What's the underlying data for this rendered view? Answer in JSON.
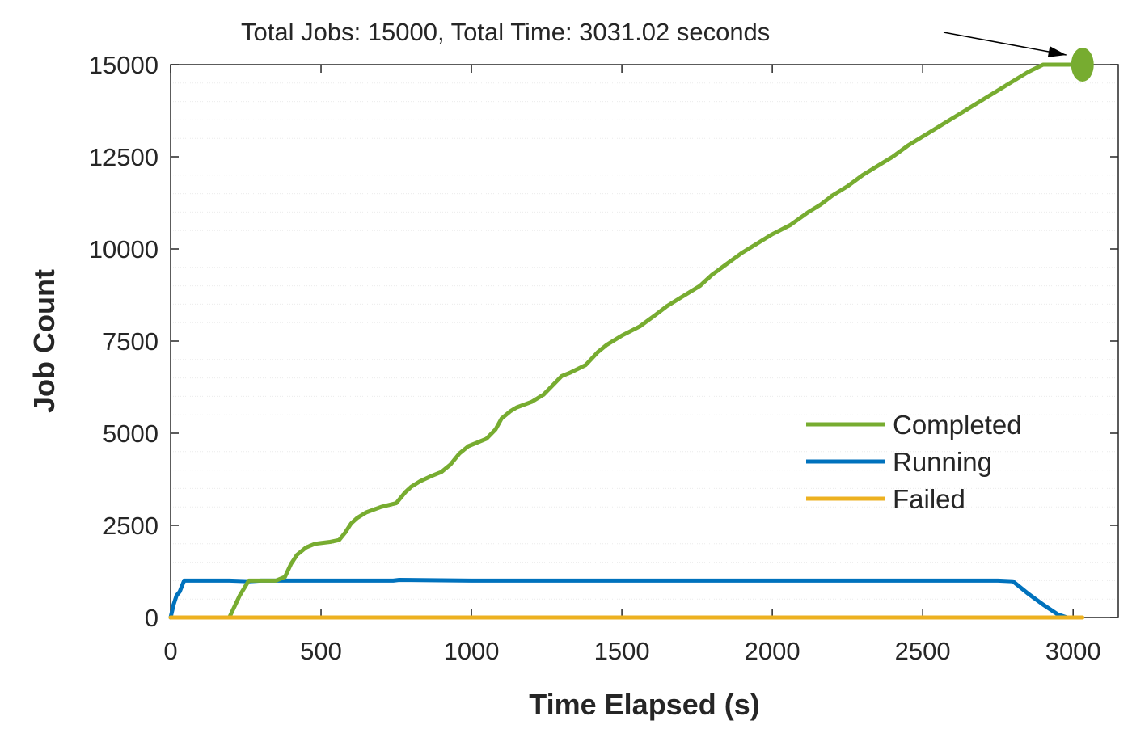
{
  "chart_data": {
    "type": "line",
    "xlabel": "Time Elapsed (s)",
    "ylabel": "Job Count",
    "xlim": [
      0,
      3150
    ],
    "ylim": [
      0,
      15000
    ],
    "xticks": [
      0,
      500,
      1000,
      1500,
      2000,
      2500,
      3000
    ],
    "yticks": [
      0,
      2500,
      5000,
      7500,
      10000,
      12500,
      15000
    ],
    "grid": "minor y-grid on",
    "legend_position": "right-center",
    "series": [
      {
        "name": "Completed",
        "color": "#77AC30",
        "x": [
          0,
          195,
          230,
          260,
          300,
          350,
          380,
          400,
          420,
          450,
          480,
          500,
          530,
          560,
          580,
          600,
          620,
          650,
          700,
          750,
          780,
          800,
          830,
          870,
          900,
          930,
          960,
          990,
          1020,
          1050,
          1080,
          1100,
          1130,
          1150,
          1200,
          1240,
          1270,
          1300,
          1330,
          1380,
          1420,
          1450,
          1500,
          1560,
          1610,
          1650,
          1700,
          1760,
          1800,
          1850,
          1900,
          1950,
          2000,
          2060,
          2120,
          2160,
          2200,
          2250,
          2300,
          2350,
          2400,
          2450,
          2500,
          2550,
          2600,
          2650,
          2700,
          2750,
          2800,
          2850,
          2900,
          2950,
          3000,
          3031
        ],
        "y": [
          0,
          0,
          600,
          1000,
          1000,
          1000,
          1100,
          1450,
          1700,
          1900,
          2000,
          2020,
          2050,
          2100,
          2300,
          2550,
          2700,
          2850,
          3000,
          3100,
          3400,
          3550,
          3700,
          3850,
          3950,
          4150,
          4450,
          4650,
          4750,
          4850,
          5100,
          5400,
          5600,
          5700,
          5850,
          6050,
          6300,
          6550,
          6650,
          6850,
          7200,
          7400,
          7650,
          7900,
          8200,
          8450,
          8700,
          9000,
          9300,
          9600,
          9900,
          10150,
          10400,
          10650,
          11000,
          11200,
          11450,
          11700,
          12000,
          12250,
          12500,
          12800,
          13050,
          13300,
          13550,
          13800,
          14050,
          14300,
          14550,
          14800,
          15000,
          15000,
          15000,
          15000
        ]
      },
      {
        "name": "Running",
        "color": "#0072BD",
        "x": [
          0,
          10,
          20,
          30,
          45,
          60,
          195,
          260,
          300,
          500,
          740,
          760,
          1000,
          1500,
          2000,
          2500,
          2750,
          2800,
          2850,
          2900,
          2950,
          2980
        ],
        "y": [
          0,
          350,
          600,
          700,
          1000,
          1000,
          1000,
          980,
          1000,
          1000,
          1000,
          1020,
          1000,
          1000,
          1000,
          1000,
          1000,
          980,
          650,
          350,
          80,
          0
        ]
      },
      {
        "name": "Failed",
        "color": "#EDB120",
        "x": [
          0,
          3031
        ],
        "y": [
          0,
          0
        ]
      }
    ],
    "annotation": {
      "text": "Total Jobs: 15000, Total Time: 3031.02 seconds",
      "point": [
        3031,
        15000
      ]
    }
  }
}
